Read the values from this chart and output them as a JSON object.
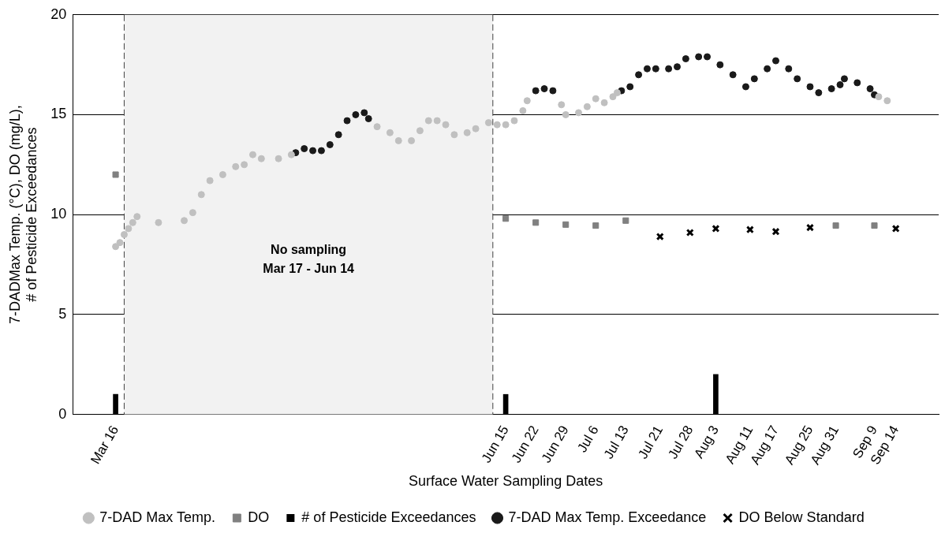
{
  "chart_data": {
    "type": "scatter",
    "xlabel": "Surface Water Sampling Dates",
    "ylabel": "7-DADMax Temp. (°C), DO (mg/L), # of Pesticide Exceedances",
    "xlim": [
      "--03-06",
      "--09-24"
    ],
    "xticks": [
      {
        "value": "--03-16",
        "label": "Mar 16"
      },
      {
        "value": "--06-15",
        "label": "Jun 15"
      },
      {
        "value": "--06-22",
        "label": "Jun 22"
      },
      {
        "value": "--06-29",
        "label": "Jun 29"
      },
      {
        "value": "--07-06",
        "label": "Jul 6"
      },
      {
        "value": "--07-13",
        "label": "Jul 13"
      },
      {
        "value": "--07-21",
        "label": "Jul 21"
      },
      {
        "value": "--07-28",
        "label": "Jul 28"
      },
      {
        "value": "--08-03",
        "label": "Aug 3"
      },
      {
        "value": "--08-11",
        "label": "Aug 11"
      },
      {
        "value": "--08-17",
        "label": "Aug 17"
      },
      {
        "value": "--08-25",
        "label": "Aug 25"
      },
      {
        "value": "--08-31",
        "label": "Aug 31"
      },
      {
        "value": "--09-09",
        "label": "Sep 9"
      },
      {
        "value": "--09-14",
        "label": "Sep 14"
      }
    ],
    "ylim": [
      0,
      20
    ],
    "yticks": [
      0,
      5,
      10,
      15,
      20
    ],
    "grid": "y",
    "legend": "bottom",
    "bands": [
      {
        "axis": "x",
        "from": "--03-18",
        "to": "--06-12",
        "label": "No sampling\nMar 17 - Jun 14",
        "color": "#f2f2f2"
      }
    ],
    "ref_lines": [
      {
        "axis": "x",
        "value": "--03-18",
        "color": "#404040",
        "line_style": "dashed"
      },
      {
        "axis": "x",
        "value": "--06-12",
        "color": "#404040",
        "line_style": "dashed"
      }
    ],
    "series": [
      {
        "name": "7-DAD Max Temp.",
        "marker": "circle",
        "color": "#c0c0c0",
        "x": [
          "--03-16",
          "--03-17",
          "--03-18",
          "--03-19",
          "--03-20",
          "--03-21",
          "--03-26",
          "--04-01",
          "--04-03",
          "--04-05",
          "--04-07",
          "--04-10",
          "--04-13",
          "--04-15",
          "--04-17",
          "--04-19",
          "--04-23",
          "--04-26",
          "--05-16",
          "--05-19",
          "--05-21",
          "--05-24",
          "--05-26",
          "--05-28",
          "--05-30",
          "--06-01",
          "--06-03",
          "--06-06",
          "--06-08",
          "--06-11",
          "--06-13",
          "--06-15",
          "--06-17",
          "--06-19",
          "--06-20",
          "--06-28",
          "--06-29",
          "--07-02",
          "--07-04",
          "--07-06",
          "--07-08",
          "--07-10",
          "--07-11",
          "--09-10",
          "--09-12"
        ],
        "values": [
          8.4,
          8.6,
          9.0,
          9.3,
          9.6,
          9.9,
          9.6,
          9.7,
          10.1,
          11.0,
          11.7,
          12.0,
          12.4,
          12.5,
          13.0,
          12.8,
          12.8,
          13.0,
          14.4,
          14.1,
          13.7,
          13.7,
          14.2,
          14.7,
          14.7,
          14.5,
          14.0,
          14.1,
          14.3,
          14.6,
          14.5,
          14.5,
          14.7,
          15.2,
          15.7,
          15.5,
          15.0,
          15.1,
          15.4,
          15.8,
          15.6,
          15.9,
          16.1,
          15.9,
          15.7
        ]
      },
      {
        "name": "DO",
        "marker": "square",
        "color": "#808080",
        "x": [
          "--03-16",
          "--06-15",
          "--06-22",
          "--06-29",
          "--07-06",
          "--07-13",
          "--08-31",
          "--09-09"
        ],
        "values": [
          12.0,
          9.8,
          9.6,
          9.5,
          9.45,
          9.7,
          9.45,
          9.45
        ]
      },
      {
        "name": "# of Pesticide Exceedances",
        "type": "bar",
        "color": "#000000",
        "x": [
          "--03-16",
          "--06-15",
          "--08-03"
        ],
        "values": [
          1,
          1,
          2
        ]
      },
      {
        "name": "7-DAD Max Temp. Exceedance",
        "marker": "circle",
        "color": "#1a1a1a",
        "x": [
          "--04-27",
          "--04-29",
          "--05-01",
          "--05-03",
          "--05-05",
          "--05-07",
          "--05-09",
          "--05-11",
          "--05-13",
          "--05-14",
          "--06-22",
          "--06-24",
          "--06-26",
          "--07-12",
          "--07-14",
          "--07-16",
          "--07-18",
          "--07-20",
          "--07-23",
          "--07-25",
          "--07-27",
          "--07-30",
          "--08-01",
          "--08-04",
          "--08-07",
          "--08-10",
          "--08-12",
          "--08-15",
          "--08-17",
          "--08-20",
          "--08-22",
          "--08-25",
          "--08-27",
          "--08-30",
          "--09-01",
          "--09-02",
          "--09-05",
          "--09-08",
          "--09-09"
        ],
        "values": [
          13.1,
          13.3,
          13.2,
          13.2,
          13.5,
          14.0,
          14.7,
          15.0,
          15.1,
          14.8,
          16.2,
          16.3,
          16.2,
          16.2,
          16.4,
          17.0,
          17.3,
          17.3,
          17.3,
          17.4,
          17.8,
          17.9,
          17.9,
          17.5,
          17.0,
          16.4,
          16.8,
          17.3,
          17.7,
          17.3,
          16.8,
          16.4,
          16.1,
          16.3,
          16.5,
          16.8,
          16.6,
          16.3,
          16.0
        ]
      },
      {
        "name": "DO Below Standard",
        "marker": "cross",
        "color": "#000000",
        "x": [
          "--07-21",
          "--07-28",
          "--08-03",
          "--08-11",
          "--08-17",
          "--08-25",
          "--09-14"
        ],
        "values": [
          8.9,
          9.1,
          9.3,
          9.25,
          9.15,
          9.35,
          9.3
        ]
      }
    ]
  }
}
